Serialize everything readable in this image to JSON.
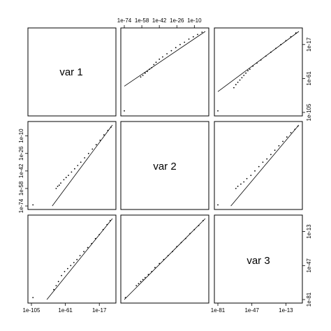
{
  "chart_data": {
    "type": "scatter",
    "matrix_size": 3,
    "variables": [
      "var 1",
      "var 2",
      "var 3"
    ],
    "log_scale": true,
    "grid": false,
    "axes": [
      {
        "range_exp": [
          -105,
          0
        ],
        "ticks": [
          {
            "exp": -105,
            "label": "1e-105"
          },
          {
            "exp": -61,
            "label": "1e-61"
          },
          {
            "exp": -17,
            "label": "1e-17"
          }
        ]
      },
      {
        "range_exp": [
          -74,
          0
        ],
        "ticks": [
          {
            "exp": -74,
            "label": "1e-74"
          },
          {
            "exp": -58,
            "label": "1e-58"
          },
          {
            "exp": -42,
            "label": "1e-42"
          },
          {
            "exp": -26,
            "label": "1e-26"
          },
          {
            "exp": -10,
            "label": "1e-10"
          }
        ]
      },
      {
        "range_exp": [
          -81,
          0
        ],
        "ticks": [
          {
            "exp": -81,
            "label": "1e-81"
          },
          {
            "exp": -47,
            "label": "1e-47"
          },
          {
            "exp": -13,
            "label": "1e-13"
          }
        ]
      }
    ],
    "top_axis_panels": [
      1
    ],
    "bottom_axis_panels": [
      0,
      2
    ],
    "left_axis_panels": [
      1
    ],
    "right_axis_panels": [
      0,
      2
    ],
    "panels": [
      {
        "row": 0,
        "col": 1,
        "x_var": "var 2",
        "y_var": "var 1",
        "line": [
          [
            -74,
            -71
          ],
          [
            0,
            0
          ]
        ],
        "points": [
          [
            -74,
            -103
          ],
          [
            -59,
            -59
          ],
          [
            -57,
            -57
          ],
          [
            -55,
            -54
          ],
          [
            -53,
            -52
          ],
          [
            -51,
            -49
          ],
          [
            -49,
            -47
          ],
          [
            -47,
            -43
          ],
          [
            -45,
            -40
          ],
          [
            -42,
            -36
          ],
          [
            -39,
            -33
          ],
          [
            -35,
            -29
          ],
          [
            -31,
            -25
          ],
          [
            -27,
            -21
          ],
          [
            -23,
            -17
          ],
          [
            -19,
            -14
          ],
          [
            -15,
            -10
          ],
          [
            -11,
            -7
          ],
          [
            -7,
            -4
          ],
          [
            -3,
            -1
          ]
        ]
      },
      {
        "row": 0,
        "col": 2,
        "x_var": "var 3",
        "y_var": "var 1",
        "line": [
          [
            -81,
            -78
          ],
          [
            0,
            0
          ]
        ],
        "points": [
          [
            -81,
            -103
          ],
          [
            -65,
            -73
          ],
          [
            -63,
            -69
          ],
          [
            -61,
            -66
          ],
          [
            -59,
            -63
          ],
          [
            -57,
            -60
          ],
          [
            -55,
            -57
          ],
          [
            -53,
            -54
          ],
          [
            -51,
            -51
          ],
          [
            -49,
            -49
          ],
          [
            -46,
            -45
          ],
          [
            -42,
            -41
          ],
          [
            -38,
            -37
          ],
          [
            -33,
            -32
          ],
          [
            -28,
            -27
          ],
          [
            -23,
            -22
          ],
          [
            -18,
            -17
          ],
          [
            -13,
            -12
          ],
          [
            -8,
            -7
          ],
          [
            -3,
            -2
          ]
        ]
      },
      {
        "row": 1,
        "col": 0,
        "x_var": "var 1",
        "y_var": "var 2",
        "line": [
          [
            -78,
            -74
          ],
          [
            0,
            0
          ]
        ],
        "points": [
          [
            -103,
            -73
          ],
          [
            -73,
            -58
          ],
          [
            -71,
            -56
          ],
          [
            -69,
            -55
          ],
          [
            -67,
            -53
          ],
          [
            -63,
            -50
          ],
          [
            -60,
            -48
          ],
          [
            -57,
            -46
          ],
          [
            -53,
            -43
          ],
          [
            -49,
            -40
          ],
          [
            -45,
            -37
          ],
          [
            -41,
            -34
          ],
          [
            -36,
            -30
          ],
          [
            -31,
            -26
          ],
          [
            -26,
            -22
          ],
          [
            -21,
            -18
          ],
          [
            -16,
            -14
          ],
          [
            -11,
            -9
          ],
          [
            -6,
            -5
          ],
          [
            -2,
            -2
          ]
        ]
      },
      {
        "row": 1,
        "col": 2,
        "x_var": "var 3",
        "y_var": "var 2",
        "line": [
          [
            -68,
            -74
          ],
          [
            0,
            0
          ]
        ],
        "points": [
          [
            -81,
            -73
          ],
          [
            -63,
            -58
          ],
          [
            -61,
            -56
          ],
          [
            -58,
            -54
          ],
          [
            -55,
            -52
          ],
          [
            -52,
            -49
          ],
          [
            -48,
            -46
          ],
          [
            -44,
            -42
          ],
          [
            -40,
            -38
          ],
          [
            -36,
            -34
          ],
          [
            -32,
            -31
          ],
          [
            -28,
            -27
          ],
          [
            -24,
            -23
          ],
          [
            -20,
            -19
          ],
          [
            -16,
            -15
          ],
          [
            -12,
            -11
          ],
          [
            -8,
            -7
          ],
          [
            -4,
            -4
          ],
          [
            -1,
            -1
          ]
        ]
      },
      {
        "row": 2,
        "col": 0,
        "x_var": "var 1",
        "y_var": "var 3",
        "line": [
          [
            -85,
            -81
          ],
          [
            0,
            0
          ]
        ],
        "points": [
          [
            -103,
            -79
          ],
          [
            -76,
            -71
          ],
          [
            -73,
            -67
          ],
          [
            -70,
            -63
          ],
          [
            -66,
            -57
          ],
          [
            -62,
            -53
          ],
          [
            -58,
            -50
          ],
          [
            -54,
            -47
          ],
          [
            -50,
            -44
          ],
          [
            -46,
            -41
          ],
          [
            -42,
            -37
          ],
          [
            -37,
            -33
          ],
          [
            -32,
            -29
          ],
          [
            -27,
            -25
          ],
          [
            -22,
            -20
          ],
          [
            -17,
            -16
          ],
          [
            -12,
            -11
          ],
          [
            -7,
            -6
          ],
          [
            -3,
            -2
          ]
        ]
      },
      {
        "row": 2,
        "col": 1,
        "x_var": "var 2",
        "y_var": "var 3",
        "line": [
          [
            -74,
            -81
          ],
          [
            0,
            0
          ]
        ],
        "points": [
          [
            -73,
            -79
          ],
          [
            -63,
            -67
          ],
          [
            -61,
            -65
          ],
          [
            -59,
            -63
          ],
          [
            -57,
            -61
          ],
          [
            -55,
            -59
          ],
          [
            -52,
            -56
          ],
          [
            -49,
            -53
          ],
          [
            -46,
            -49
          ],
          [
            -42,
            -45
          ],
          [
            -38,
            -41
          ],
          [
            -34,
            -37
          ],
          [
            -30,
            -33
          ],
          [
            -26,
            -28
          ],
          [
            -22,
            -24
          ],
          [
            -18,
            -20
          ],
          [
            -14,
            -15
          ],
          [
            -10,
            -11
          ],
          [
            -6,
            -7
          ],
          [
            -2,
            -2
          ]
        ]
      }
    ]
  }
}
